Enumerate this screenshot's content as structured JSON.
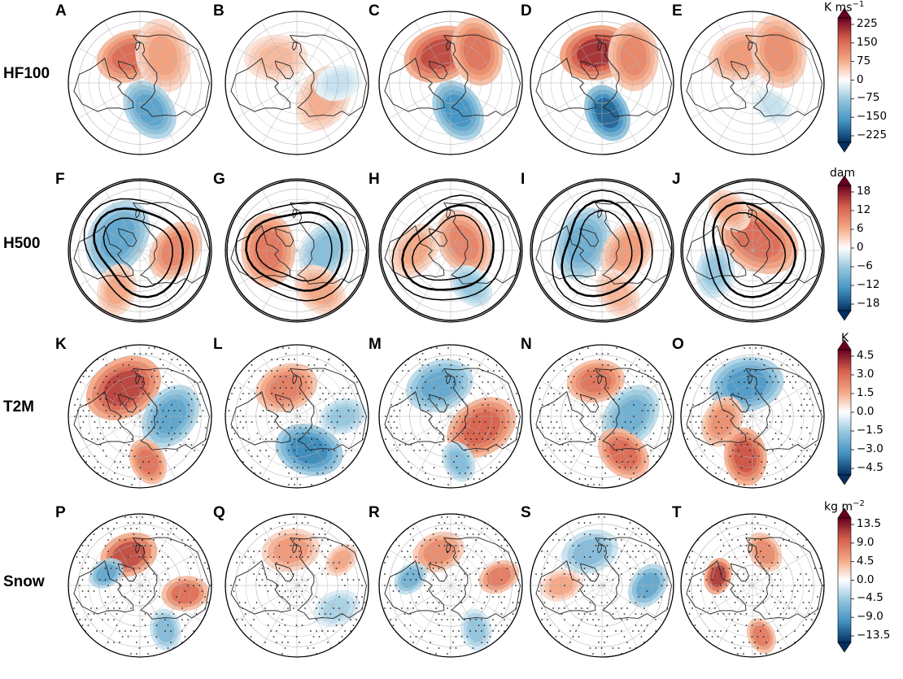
{
  "colors": {
    "deep_red": "#67001f",
    "red": "#d6604d",
    "light_red": "#f4a582",
    "white": "#ffffff",
    "light_blue": "#92c5de",
    "blue": "#4393c3",
    "deep_blue": "#053061",
    "outline": "#000000",
    "grid": "#b0b0b0",
    "land": "#222222"
  },
  "chart_data": [
    {
      "type": "heatmap",
      "row_label": "HF100",
      "panel_letters": [
        "A",
        "B",
        "C",
        "D",
        "E"
      ],
      "colorbar": {
        "unit": "K ms",
        "unit_exponent": "−1",
        "ticks": [
          "225",
          "150",
          "75",
          "0",
          "−75",
          "−150",
          "−225"
        ],
        "vmin": -225,
        "vmax": 225
      },
      "panels": [
        {
          "letter": "A",
          "anomalies": [
            {
              "lat": 62,
              "lon": -20,
              "value": 140,
              "spread": 26
            },
            {
              "lat": 55,
              "lon": 40,
              "value": 80,
              "spread": 28
            },
            {
              "lat": 62,
              "lon": 160,
              "value": -130,
              "spread": 24
            }
          ]
        },
        {
          "letter": "B",
          "anomalies": [
            {
              "lat": 60,
              "lon": 120,
              "value": 70,
              "spread": 26
            },
            {
              "lat": 58,
              "lon": -40,
              "value": 60,
              "spread": 24
            },
            {
              "lat": 50,
              "lon": 90,
              "value": -40,
              "spread": 18
            }
          ]
        },
        {
          "letter": "C",
          "anomalies": [
            {
              "lat": 60,
              "lon": -20,
              "value": 170,
              "spread": 28
            },
            {
              "lat": 50,
              "lon": 40,
              "value": 130,
              "spread": 26
            },
            {
              "lat": 62,
              "lon": 165,
              "value": -150,
              "spread": 24
            }
          ]
        },
        {
          "letter": "D",
          "anomalies": [
            {
              "lat": 60,
              "lon": -10,
              "value": 190,
              "spread": 28
            },
            {
              "lat": 50,
              "lon": 50,
              "value": 110,
              "spread": 26
            },
            {
              "lat": 60,
              "lon": 170,
              "value": -190,
              "spread": 22
            }
          ]
        },
        {
          "letter": "E",
          "anomalies": [
            {
              "lat": 60,
              "lon": -20,
              "value": 90,
              "spread": 26
            },
            {
              "lat": 50,
              "lon": 40,
              "value": 100,
              "spread": 28
            },
            {
              "lat": 60,
              "lon": 140,
              "value": -40,
              "spread": 16
            }
          ]
        }
      ]
    },
    {
      "type": "heatmap",
      "row_label": "H500",
      "panel_letters": [
        "F",
        "G",
        "H",
        "I",
        "J"
      ],
      "colorbar": {
        "unit": "dam",
        "unit_exponent": "",
        "ticks": [
          "18",
          "12",
          "6",
          "0",
          "−6",
          "−12",
          "−18"
        ],
        "vmin": -18,
        "vmax": 18
      },
      "contour_levels_lat": [
        38,
        48,
        58
      ],
      "panels": [
        {
          "letter": "F",
          "anomalies": [
            {
              "lat": 65,
              "lon": -60,
              "value": -10,
              "spread": 30
            },
            {
              "lat": 55,
              "lon": 90,
              "value": 9,
              "spread": 24
            },
            {
              "lat": 45,
              "lon": -150,
              "value": 6,
              "spread": 20
            }
          ]
        },
        {
          "letter": "G",
          "anomalies": [
            {
              "lat": 62,
              "lon": -90,
              "value": 10,
              "spread": 28
            },
            {
              "lat": 62,
              "lon": 90,
              "value": -7,
              "spread": 24
            },
            {
              "lat": 45,
              "lon": 150,
              "value": 6,
              "spread": 22
            }
          ]
        },
        {
          "letter": "H",
          "anomalies": [
            {
              "lat": 75,
              "lon": 60,
              "value": 9,
              "spread": 26
            },
            {
              "lat": 55,
              "lon": -90,
              "value": 6,
              "spread": 22
            },
            {
              "lat": 50,
              "lon": 150,
              "value": -6,
              "spread": 18
            }
          ]
        },
        {
          "letter": "I",
          "anomalies": [
            {
              "lat": 70,
              "lon": -70,
              "value": -9,
              "spread": 28
            },
            {
              "lat": 65,
              "lon": 90,
              "value": 7,
              "spread": 24
            },
            {
              "lat": 45,
              "lon": 160,
              "value": 5,
              "spread": 20
            }
          ]
        },
        {
          "letter": "J",
          "anomalies": [
            {
              "lat": 78,
              "lon": 30,
              "value": 11,
              "spread": 32
            },
            {
              "lat": 48,
              "lon": -120,
              "value": -6,
              "spread": 20
            },
            {
              "lat": 45,
              "lon": -30,
              "value": 6,
              "spread": 18
            }
          ]
        }
      ]
    },
    {
      "type": "heatmap",
      "row_label": "T2M",
      "panel_letters": [
        "K",
        "L",
        "M",
        "N",
        "O"
      ],
      "colorbar": {
        "unit": "K",
        "unit_exponent": "",
        "ticks": [
          "4.5",
          "3.0",
          "1.5",
          "0.0",
          "−1.5",
          "−3.0",
          "−4.5"
        ],
        "vmin": -4.5,
        "vmax": 4.5
      },
      "stippled": true,
      "panels": [
        {
          "letter": "K",
          "anomalies": [
            {
              "lat": 58,
              "lon": -30,
              "value": 3.5,
              "spread": 30
            },
            {
              "lat": 60,
              "lon": 90,
              "value": -2.5,
              "spread": 26
            },
            {
              "lat": 45,
              "lon": 170,
              "value": 2.6,
              "spread": 18
            }
          ]
        },
        {
          "letter": "L",
          "anomalies": [
            {
              "lat": 60,
              "lon": -20,
              "value": 2.4,
              "spread": 24
            },
            {
              "lat": 55,
              "lon": 160,
              "value": -3.2,
              "spread": 26
            },
            {
              "lat": 45,
              "lon": 90,
              "value": -1.5,
              "spread": 18
            }
          ]
        },
        {
          "letter": "M",
          "anomalies": [
            {
              "lat": 58,
              "lon": -20,
              "value": -2.4,
              "spread": 26
            },
            {
              "lat": 58,
              "lon": 110,
              "value": 3.0,
              "spread": 28
            },
            {
              "lat": 45,
              "lon": 170,
              "value": -1.8,
              "spread": 16
            }
          ]
        },
        {
          "letter": "N",
          "anomalies": [
            {
              "lat": 55,
              "lon": -10,
              "value": 2.6,
              "spread": 22
            },
            {
              "lat": 62,
              "lon": 90,
              "value": -2.2,
              "spread": 26
            },
            {
              "lat": 48,
              "lon": 150,
              "value": 2.8,
              "spread": 22
            }
          ]
        },
        {
          "letter": "O",
          "anomalies": [
            {
              "lat": 58,
              "lon": -10,
              "value": -2.8,
              "spread": 28
            },
            {
              "lat": 60,
              "lon": -100,
              "value": 2.0,
              "spread": 20
            },
            {
              "lat": 50,
              "lon": 190,
              "value": 3.2,
              "spread": 22
            }
          ]
        }
      ]
    },
    {
      "type": "heatmap",
      "row_label": "Snow",
      "panel_letters": [
        "P",
        "Q",
        "R",
        "S",
        "T"
      ],
      "colorbar": {
        "unit": "kg m",
        "unit_exponent": "−2",
        "ticks": [
          "13.5",
          "9.0",
          "4.5",
          "0.0",
          "−4.5",
          "−9.0",
          "−13.5"
        ],
        "vmin": -13.5,
        "vmax": 13.5
      },
      "stippled": true,
      "patchy": true,
      "panels": [
        {
          "letter": "P",
          "anomalies": [
            {
              "lat": 58,
              "lon": -20,
              "value": 11,
              "spread": 22
            },
            {
              "lat": 55,
              "lon": -70,
              "value": -8,
              "spread": 14
            },
            {
              "lat": 45,
              "lon": 100,
              "value": 9,
              "spread": 18
            },
            {
              "lat": 40,
              "lon": 150,
              "value": -6,
              "spread": 16
            }
          ]
        },
        {
          "letter": "Q",
          "anomalies": [
            {
              "lat": 55,
              "lon": -10,
              "value": 6,
              "spread": 22
            },
            {
              "lat": 45,
              "lon": 120,
              "value": -4,
              "spread": 18
            },
            {
              "lat": 40,
              "lon": 60,
              "value": 5,
              "spread": 14
            }
          ]
        },
        {
          "letter": "R",
          "anomalies": [
            {
              "lat": 55,
              "lon": -20,
              "value": 7,
              "spread": 20
            },
            {
              "lat": 50,
              "lon": -80,
              "value": -7,
              "spread": 14
            },
            {
              "lat": 42,
              "lon": 80,
              "value": 8,
              "spread": 16
            },
            {
              "lat": 40,
              "lon": 150,
              "value": -5,
              "spread": 16
            }
          ]
        },
        {
          "letter": "S",
          "anomalies": [
            {
              "lat": 55,
              "lon": -20,
              "value": -6,
              "spread": 22
            },
            {
              "lat": 45,
              "lon": 90,
              "value": -8,
              "spread": 18
            },
            {
              "lat": 50,
              "lon": -90,
              "value": 5,
              "spread": 16
            }
          ]
        },
        {
          "letter": "T",
          "anomalies": [
            {
              "lat": 55,
              "lon": -75,
              "value": 12,
              "spread": 14
            },
            {
              "lat": 55,
              "lon": 20,
              "value": 7,
              "spread": 16
            },
            {
              "lat": 40,
              "lon": 170,
              "value": 8,
              "spread": 14
            }
          ]
        }
      ]
    }
  ]
}
